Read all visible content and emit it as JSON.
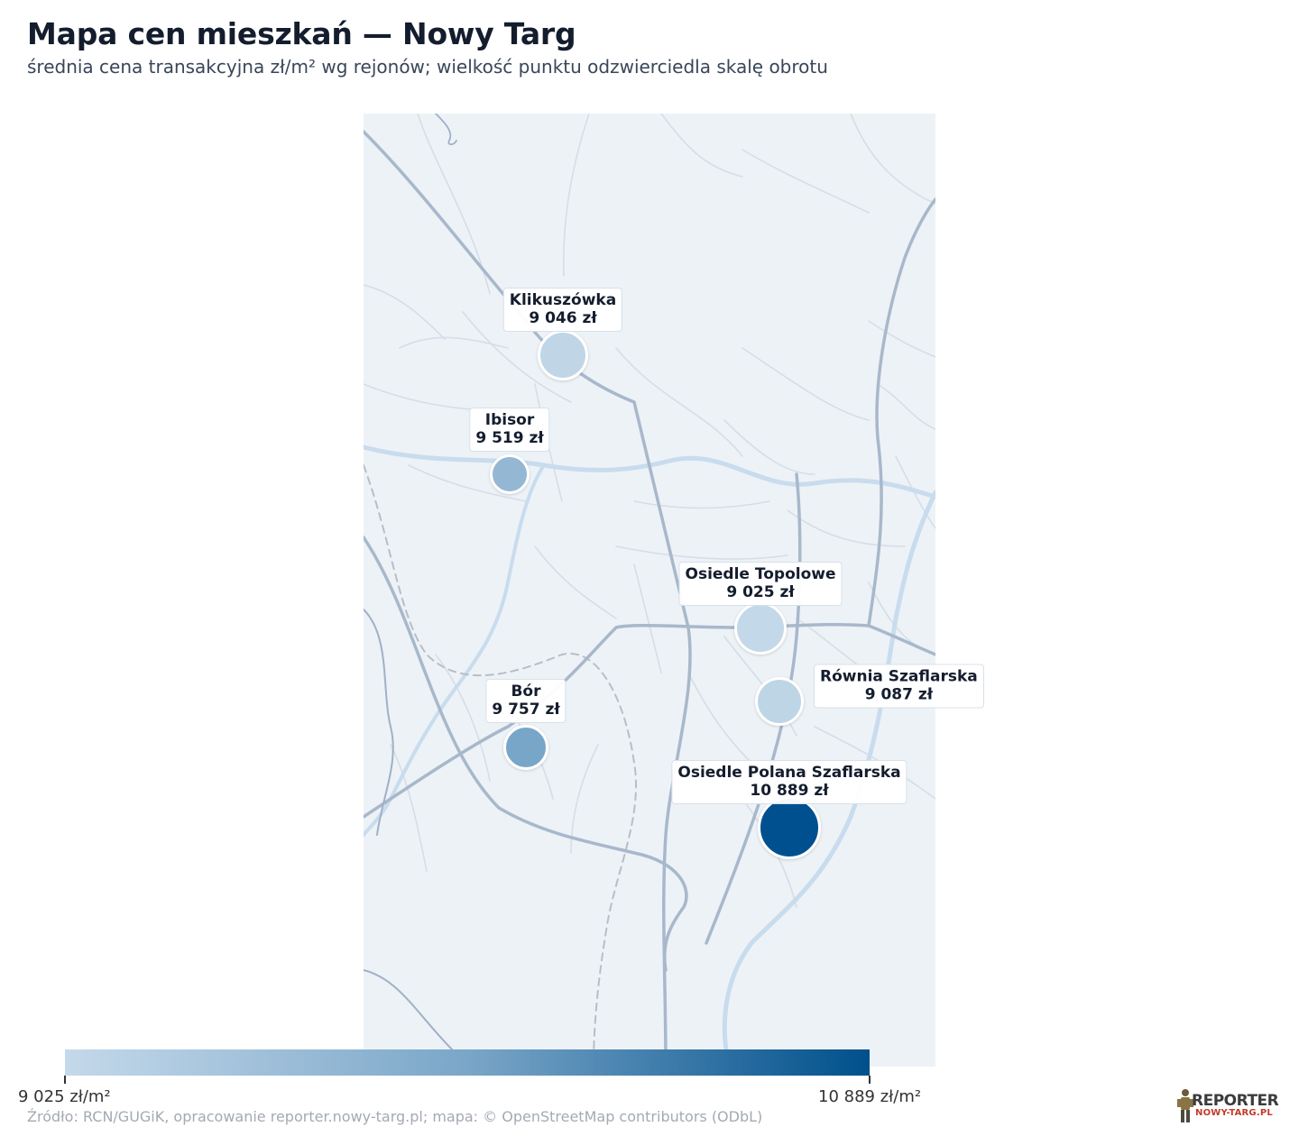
{
  "header": {
    "title": "Mapa cen mieszkań — Nowy Targ",
    "subtitle": "średnia cena transakcyjna zł/m² wg rejonów; wielkość punktu odzwierciedla skalę obrotu"
  },
  "map": {
    "colors": {
      "background": "#edf2f7",
      "roads_major": "#9fb1c6",
      "roads_minor": "#d3dbe5",
      "river": "#c6dbee",
      "railway": "#b5bcc6"
    },
    "points": [
      {
        "name": "Klikuszówka",
        "price": "9 046 zł",
        "value": 9046,
        "color": "#c0d6e7"
      },
      {
        "name": "Ibisor",
        "price": "9 519 zł",
        "value": 9519,
        "color": "#94b7d3"
      },
      {
        "name": "Osiedle Topolowe",
        "price": "9 025 zł",
        "value": 9025,
        "color": "#c3d8e8"
      },
      {
        "name": "Równia Szaflarska",
        "price": "9 087 zł",
        "value": 9087,
        "color": "#bed5e6"
      },
      {
        "name": "Bór",
        "price": "9 757 zł",
        "value": 9757,
        "color": "#78a6c8"
      },
      {
        "name": "Osiedle Polana Szaflarska",
        "price": "10 889 zł",
        "value": 10889,
        "color": "#005090"
      }
    ]
  },
  "colorbar": {
    "min_label": "9 025 zł/m²",
    "max_label": "10 889 zł/m²",
    "min": 9025,
    "max": 10889,
    "color_start": "#c4d9ea",
    "color_end": "#00508c"
  },
  "footer": {
    "source": "Źródło: RCN/GUGiK, opracowanie reporter.nowy-targ.pl; mapa: © OpenStreetMap contributors (ODbL)",
    "logo_top": "REPORTER",
    "logo_bottom": "NOWY-TARG.PL"
  }
}
